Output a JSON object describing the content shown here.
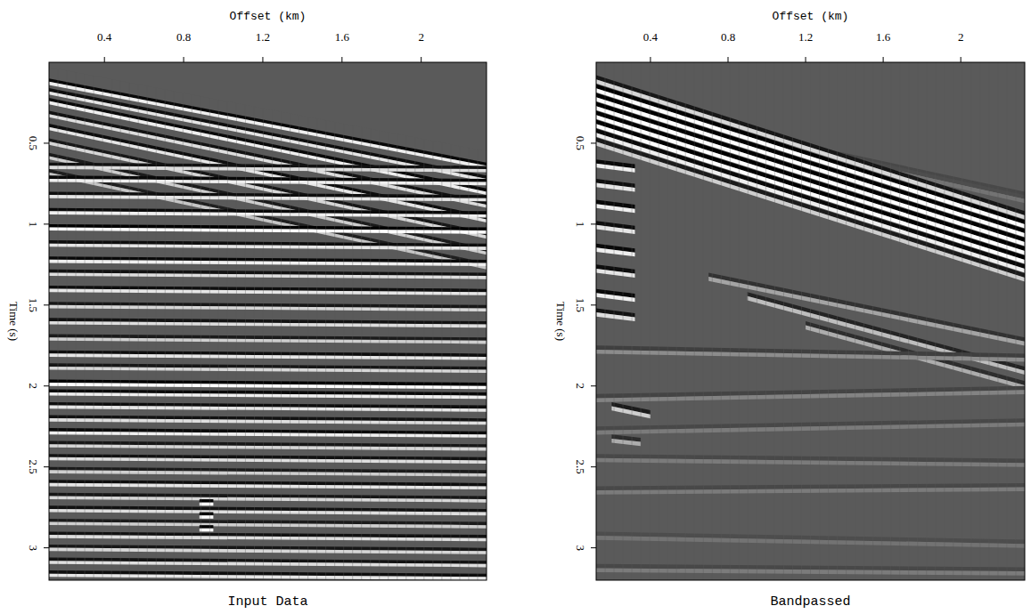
{
  "chart_data": [
    {
      "type": "seismic",
      "title": "Input Data",
      "x_label": "Offset (km)",
      "y_label": "Time (s)",
      "xlim": [
        0.12,
        2.33
      ],
      "ylim": [
        0,
        3.2
      ],
      "xticks": [
        0.4,
        0.8,
        1.2,
        1.6,
        2
      ],
      "yticks": [
        0.5,
        1,
        1.5,
        2,
        2.5,
        3
      ],
      "mute": {
        "x": [
          0.12,
          2.33
        ],
        "values": [
          0.03,
          0.55
        ]
      },
      "series": [
        {
          "x": [
            0.12,
            2.33
          ],
          "values": [
            0.1,
            0.62
          ],
          "amplitude": 0.9
        },
        {
          "x": [
            0.12,
            2.33
          ],
          "values": [
            0.16,
            0.7
          ],
          "amplitude": 0.85
        },
        {
          "x": [
            0.12,
            2.33
          ],
          "values": [
            0.22,
            0.78
          ],
          "amplitude": 0.9
        },
        {
          "x": [
            0.12,
            2.33
          ],
          "values": [
            0.3,
            0.86
          ],
          "amplitude": 0.8
        },
        {
          "x": [
            0.12,
            2.33
          ],
          "values": [
            0.38,
            0.95
          ],
          "amplitude": 0.85
        },
        {
          "x": [
            0.12,
            2.33
          ],
          "values": [
            0.47,
            1.05
          ],
          "amplitude": 0.75
        },
        {
          "x": [
            0.12,
            2.33
          ],
          "values": [
            0.56,
            1.15
          ],
          "amplitude": 0.7
        },
        {
          "x": [
            0.12,
            2.33
          ],
          "values": [
            0.66,
            1.24
          ],
          "amplitude": 0.65
        },
        {
          "x": [
            0.12,
            2.33
          ],
          "values": [
            0.62,
            0.64
          ],
          "amplitude": 0.8
        },
        {
          "x": [
            0.12,
            2.33
          ],
          "values": [
            0.7,
            0.72
          ],
          "amplitude": 0.9
        },
        {
          "x": [
            0.12,
            2.33
          ],
          "values": [
            0.8,
            0.82
          ],
          "amplitude": 0.85
        },
        {
          "x": [
            0.12,
            2.33
          ],
          "values": [
            0.9,
            0.92
          ],
          "amplitude": 0.9
        },
        {
          "x": [
            0.12,
            2.33
          ],
          "values": [
            1.0,
            1.02
          ],
          "amplitude": 1.0
        },
        {
          "x": [
            0.12,
            2.33
          ],
          "values": [
            1.1,
            1.12
          ],
          "amplitude": 0.85
        },
        {
          "x": [
            0.12,
            2.33
          ],
          "values": [
            1.2,
            1.22
          ],
          "amplitude": 0.9
        },
        {
          "x": [
            0.12,
            2.33
          ],
          "values": [
            1.28,
            1.3
          ],
          "amplitude": 0.8
        },
        {
          "x": [
            0.12,
            2.33
          ],
          "values": [
            1.38,
            1.4
          ],
          "amplitude": 0.85
        },
        {
          "x": [
            0.12,
            2.33
          ],
          "values": [
            1.48,
            1.5
          ],
          "amplitude": 0.75
        },
        {
          "x": [
            0.12,
            2.33
          ],
          "values": [
            1.58,
            1.6
          ],
          "amplitude": 0.8
        },
        {
          "x": [
            0.12,
            2.33
          ],
          "values": [
            1.68,
            1.7
          ],
          "amplitude": 0.7
        },
        {
          "x": [
            0.12,
            2.33
          ],
          "values": [
            1.78,
            1.8
          ],
          "amplitude": 0.85
        },
        {
          "x": [
            0.12,
            2.33
          ],
          "values": [
            1.86,
            1.88
          ],
          "amplitude": 0.75
        },
        {
          "x": [
            0.12,
            2.33
          ],
          "values": [
            1.96,
            1.98
          ],
          "amplitude": 1.0
        },
        {
          "x": [
            0.12,
            2.33
          ],
          "values": [
            2.02,
            2.04
          ],
          "amplitude": 0.9
        },
        {
          "x": [
            0.12,
            2.33
          ],
          "values": [
            2.1,
            2.12
          ],
          "amplitude": 0.85
        },
        {
          "x": [
            0.12,
            2.33
          ],
          "values": [
            2.18,
            2.2
          ],
          "amplitude": 0.8
        },
        {
          "x": [
            0.12,
            2.33
          ],
          "values": [
            2.26,
            2.28
          ],
          "amplitude": 0.9
        },
        {
          "x": [
            0.12,
            2.33
          ],
          "values": [
            2.34,
            2.36
          ],
          "amplitude": 0.75
        },
        {
          "x": [
            0.12,
            2.33
          ],
          "values": [
            2.42,
            2.44
          ],
          "amplitude": 0.8
        },
        {
          "x": [
            0.12,
            2.33
          ],
          "values": [
            2.5,
            2.52
          ],
          "amplitude": 0.7
        },
        {
          "x": [
            0.12,
            2.33
          ],
          "values": [
            2.58,
            2.6
          ],
          "amplitude": 0.85
        },
        {
          "x": [
            0.12,
            2.33
          ],
          "values": [
            2.66,
            2.68
          ],
          "amplitude": 0.75
        },
        {
          "x": [
            0.12,
            2.33
          ],
          "values": [
            2.74,
            2.76
          ],
          "amplitude": 0.8
        },
        {
          "x": [
            0.12,
            2.33
          ],
          "values": [
            2.82,
            2.84
          ],
          "amplitude": 0.7
        },
        {
          "x": [
            0.12,
            2.33
          ],
          "values": [
            2.9,
            2.92
          ],
          "amplitude": 0.8
        },
        {
          "x": [
            0.12,
            2.33
          ],
          "values": [
            2.98,
            3.0
          ],
          "amplitude": 0.75
        },
        {
          "x": [
            0.12,
            2.33
          ],
          "values": [
            3.06,
            3.08
          ],
          "amplitude": 0.8
        },
        {
          "x": [
            0.12,
            2.33
          ],
          "values": [
            3.14,
            3.16
          ],
          "amplitude": 0.85
        },
        {
          "x": [
            0.88,
            0.95
          ],
          "values": [
            2.7,
            2.7
          ],
          "amplitude": 1.0
        },
        {
          "x": [
            0.88,
            0.95
          ],
          "values": [
            2.78,
            2.78
          ],
          "amplitude": 1.0
        },
        {
          "x": [
            0.88,
            0.95
          ],
          "values": [
            2.86,
            2.86
          ],
          "amplitude": 1.0
        }
      ]
    },
    {
      "type": "seismic",
      "title": "Bandpassed",
      "x_label": "Offset (km)",
      "y_label": "Time (s)",
      "xlim": [
        0.12,
        2.33
      ],
      "ylim": [
        0,
        3.2
      ],
      "xticks": [
        0.4,
        0.8,
        1.2,
        1.6,
        2
      ],
      "yticks": [
        0.5,
        1,
        1.5,
        2,
        2.5,
        3
      ],
      "series": [
        {
          "x": [
            0.7,
            2.33
          ],
          "values": [
            0.38,
            0.8
          ],
          "amplitude": 0.2
        },
        {
          "x": [
            1.2,
            2.33
          ],
          "values": [
            0.52,
            0.82
          ],
          "amplitude": 0.15
        },
        {
          "x": [
            0.12,
            2.33
          ],
          "values": [
            0.08,
            0.92
          ],
          "amplitude": 0.75
        },
        {
          "x": [
            0.12,
            2.33
          ],
          "values": [
            0.135,
            0.975
          ],
          "amplitude": 1.0
        },
        {
          "x": [
            0.12,
            2.33
          ],
          "values": [
            0.19,
            1.03
          ],
          "amplitude": 1.0
        },
        {
          "x": [
            0.12,
            2.33
          ],
          "values": [
            0.245,
            1.085
          ],
          "amplitude": 1.0
        },
        {
          "x": [
            0.12,
            2.33
          ],
          "values": [
            0.3,
            1.14
          ],
          "amplitude": 1.0
        },
        {
          "x": [
            0.12,
            2.33
          ],
          "values": [
            0.355,
            1.195
          ],
          "amplitude": 1.0
        },
        {
          "x": [
            0.12,
            2.33
          ],
          "values": [
            0.41,
            1.25
          ],
          "amplitude": 0.9
        },
        {
          "x": [
            0.12,
            2.33
          ],
          "values": [
            0.465,
            1.305
          ],
          "amplitude": 0.7
        },
        {
          "x": [
            0.12,
            0.32
          ],
          "values": [
            0.6,
            0.63
          ],
          "amplitude": 0.9
        },
        {
          "x": [
            0.12,
            0.32
          ],
          "values": [
            0.72,
            0.75
          ],
          "amplitude": 0.85
        },
        {
          "x": [
            0.12,
            0.32
          ],
          "values": [
            0.85,
            0.88
          ],
          "amplitude": 0.9
        },
        {
          "x": [
            0.12,
            0.32
          ],
          "values": [
            0.98,
            1.01
          ],
          "amplitude": 0.85
        },
        {
          "x": [
            0.12,
            0.32
          ],
          "values": [
            1.12,
            1.15
          ],
          "amplitude": 0.9
        },
        {
          "x": [
            0.12,
            0.32
          ],
          "values": [
            1.25,
            1.28
          ],
          "amplitude": 0.85
        },
        {
          "x": [
            0.12,
            0.32
          ],
          "values": [
            1.4,
            1.43
          ],
          "amplitude": 0.9
        },
        {
          "x": [
            0.12,
            0.32
          ],
          "values": [
            1.52,
            1.55
          ],
          "amplitude": 0.8
        },
        {
          "x": [
            0.7,
            2.33
          ],
          "values": [
            1.3,
            1.7
          ],
          "amplitude": 0.45
        },
        {
          "x": [
            0.9,
            2.33
          ],
          "values": [
            1.42,
            1.88
          ],
          "amplitude": 0.6
        },
        {
          "x": [
            1.2,
            2.33
          ],
          "values": [
            1.6,
            1.97
          ],
          "amplitude": 0.5
        },
        {
          "x": [
            0.2,
            0.4
          ],
          "values": [
            2.1,
            2.15
          ],
          "amplitude": 0.7
        },
        {
          "x": [
            0.2,
            0.35
          ],
          "values": [
            2.3,
            2.32
          ],
          "amplitude": 0.5
        },
        {
          "x": [
            0.12,
            2.33
          ],
          "values": [
            1.75,
            1.8
          ],
          "amplitude": 0.3
        },
        {
          "x": [
            0.12,
            2.33
          ],
          "values": [
            2.05,
            2.0
          ],
          "amplitude": 0.25
        },
        {
          "x": [
            0.12,
            2.33
          ],
          "values": [
            2.25,
            2.2
          ],
          "amplitude": 0.2
        },
        {
          "x": [
            0.12,
            2.33
          ],
          "values": [
            2.42,
            2.45
          ],
          "amplitude": 0.2
        },
        {
          "x": [
            0.12,
            2.33
          ],
          "values": [
            2.62,
            2.6
          ],
          "amplitude": 0.2
        },
        {
          "x": [
            0.12,
            2.33
          ],
          "values": [
            2.9,
            2.95
          ],
          "amplitude": 0.15
        },
        {
          "x": [
            0.12,
            2.33
          ],
          "values": [
            3.1,
            3.12
          ],
          "amplitude": 0.2
        }
      ]
    }
  ]
}
